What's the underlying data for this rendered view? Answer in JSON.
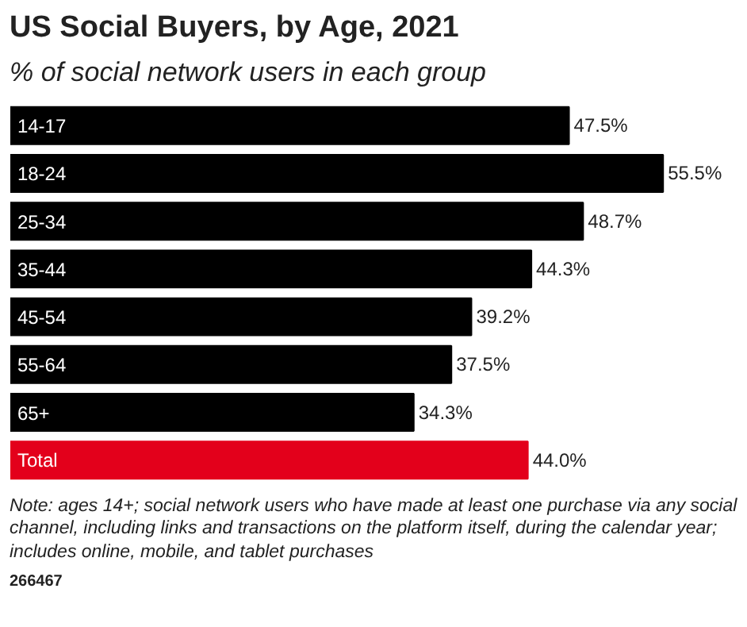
{
  "chart_data": {
    "type": "bar",
    "orientation": "horizontal",
    "title": "US Social Buyers, by Age, 2021",
    "subtitle": "% of social network users in each group",
    "categories": [
      "14-17",
      "18-24",
      "25-34",
      "35-44",
      "45-54",
      "55-64",
      "65+",
      "Total"
    ],
    "values": [
      47.5,
      55.5,
      48.7,
      44.3,
      39.2,
      37.5,
      34.3,
      44.0
    ],
    "colors": [
      "#000000",
      "#000000",
      "#000000",
      "#000000",
      "#000000",
      "#000000",
      "#000000",
      "#e3001b"
    ],
    "value_labels": [
      "47.5%",
      "55.5%",
      "48.7%",
      "44.3%",
      "39.2%",
      "37.5%",
      "34.3%",
      "44.0%"
    ],
    "grid": false,
    "annotations": [
      "Note: ages 14+; social network users who have made at least one purchase via any social channel, including links and transactions on the platform itself, during the calendar year; includes online, mobile, and tablet purchases",
      "266467"
    ]
  }
}
